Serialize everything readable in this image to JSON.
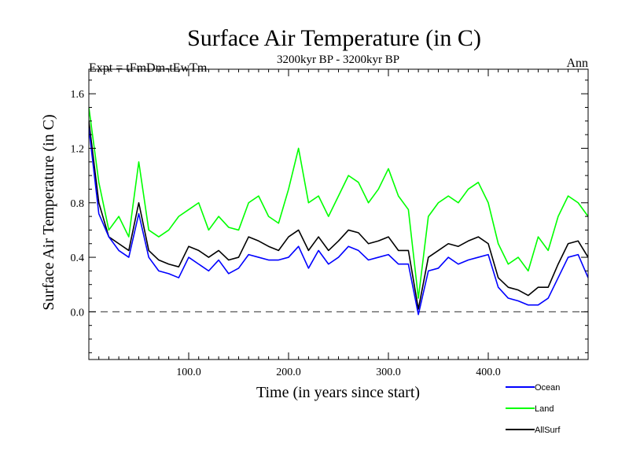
{
  "chart_data": {
    "type": "line",
    "title": "Surface Air Temperature (in C)",
    "subtitle": "3200kyr BP - 3200kyr BP",
    "top_left_label": "Expt = tFmDm-tEwTm",
    "top_right_label": "Ann",
    "xlabel": "Time (in years since start)",
    "ylabel": "Surface Air Temperature (in C)",
    "xlim": [
      0,
      500
    ],
    "ylim": [
      -0.35,
      1.78
    ],
    "x_ticks": [
      100,
      200,
      300,
      400
    ],
    "x_tick_labels": [
      "100.0",
      "200.0",
      "300.0",
      "400.0"
    ],
    "y_ticks": [
      0.0,
      0.4,
      0.8,
      1.2,
      1.6
    ],
    "y_tick_labels": [
      "0.0",
      "0.4",
      "0.8",
      "1.2",
      "1.6"
    ],
    "reference_line": 0.0,
    "grid": false,
    "legend_position": "bottom-right",
    "x": [
      0,
      10,
      20,
      30,
      40,
      50,
      60,
      70,
      80,
      90,
      100,
      110,
      120,
      130,
      140,
      150,
      160,
      170,
      180,
      190,
      200,
      210,
      220,
      230,
      240,
      250,
      260,
      270,
      280,
      290,
      300,
      310,
      320,
      330,
      340,
      350,
      360,
      370,
      380,
      390,
      400,
      410,
      420,
      430,
      440,
      450,
      460,
      470,
      480,
      490,
      500
    ],
    "series": [
      {
        "name": "Ocean",
        "color": "#0000ff",
        "values": [
          1.35,
          0.72,
          0.55,
          0.45,
          0.4,
          0.72,
          0.4,
          0.3,
          0.28,
          0.25,
          0.4,
          0.35,
          0.3,
          0.38,
          0.28,
          0.32,
          0.42,
          0.4,
          0.38,
          0.38,
          0.4,
          0.48,
          0.32,
          0.45,
          0.35,
          0.4,
          0.48,
          0.45,
          0.38,
          0.4,
          0.42,
          0.35,
          0.35,
          -0.02,
          0.3,
          0.32,
          0.4,
          0.35,
          0.38,
          0.4,
          0.42,
          0.18,
          0.1,
          0.08,
          0.05,
          0.05,
          0.1,
          0.25,
          0.4,
          0.42,
          0.25
        ]
      },
      {
        "name": "Land",
        "color": "#00ff00",
        "values": [
          1.5,
          0.95,
          0.6,
          0.7,
          0.55,
          1.1,
          0.6,
          0.55,
          0.6,
          0.7,
          0.75,
          0.8,
          0.6,
          0.7,
          0.62,
          0.6,
          0.8,
          0.85,
          0.7,
          0.65,
          0.9,
          1.2,
          0.8,
          0.85,
          0.7,
          0.85,
          1.0,
          0.95,
          0.8,
          0.9,
          1.05,
          0.85,
          0.75,
          0.1,
          0.7,
          0.8,
          0.85,
          0.8,
          0.9,
          0.95,
          0.8,
          0.5,
          0.35,
          0.4,
          0.3,
          0.55,
          0.45,
          0.7,
          0.85,
          0.8,
          0.7
        ]
      },
      {
        "name": "AllSurf",
        "color": "#000000",
        "values": [
          1.4,
          0.8,
          0.55,
          0.5,
          0.45,
          0.8,
          0.45,
          0.38,
          0.35,
          0.33,
          0.48,
          0.45,
          0.4,
          0.45,
          0.38,
          0.4,
          0.55,
          0.52,
          0.48,
          0.45,
          0.55,
          0.6,
          0.45,
          0.55,
          0.45,
          0.52,
          0.6,
          0.58,
          0.5,
          0.52,
          0.55,
          0.45,
          0.45,
          0.02,
          0.4,
          0.45,
          0.5,
          0.48,
          0.52,
          0.55,
          0.5,
          0.25,
          0.18,
          0.16,
          0.12,
          0.18,
          0.18,
          0.35,
          0.5,
          0.52,
          0.4
        ]
      }
    ]
  }
}
